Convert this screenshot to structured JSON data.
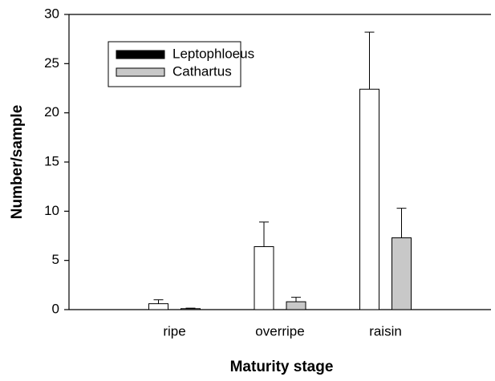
{
  "chart_data": {
    "type": "bar",
    "x_label": "Maturity stage",
    "y_label": "Number/sample",
    "categories": [
      "ripe",
      "overripe",
      "raisin"
    ],
    "series": [
      {
        "name": "Leptophloeus",
        "color": "#ffffff",
        "legend_color": "#000000",
        "values": [
          0.6,
          6.4,
          22.4
        ],
        "errors": [
          0.4,
          2.5,
          5.8
        ]
      },
      {
        "name": "Cathartus",
        "color": "#c8c8c8",
        "legend_color": "#c8c8c8",
        "values": [
          0.1,
          0.8,
          7.3
        ],
        "errors": [
          0.05,
          0.45,
          3.0
        ]
      }
    ],
    "ylim": [
      0,
      30
    ],
    "yticks": [
      0,
      5,
      10,
      15,
      20,
      25,
      30
    ],
    "legend": "upper left"
  }
}
